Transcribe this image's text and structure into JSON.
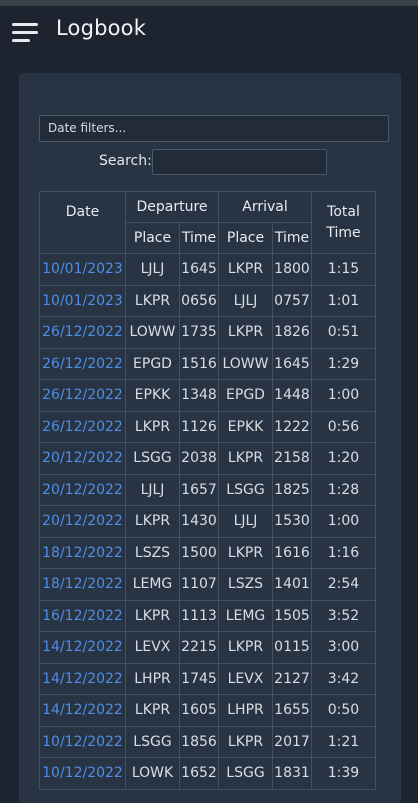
{
  "header": {
    "title": "Logbook",
    "menu_icon": "hamburger-menu-icon"
  },
  "filters": {
    "date_filters_label": "Date filters...",
    "search_label": "Search:",
    "search_value": ""
  },
  "table": {
    "headers": {
      "date": "Date",
      "departure": "Departure",
      "arrival": "Arrival",
      "total_time": "Total Time",
      "place": "Place",
      "time": "Time"
    },
    "rows": [
      {
        "date": "10/01/2023",
        "dep_place": "LJLJ",
        "dep_time": "1645",
        "arr_place": "LKPR",
        "arr_time": "1800",
        "total": "1:15"
      },
      {
        "date": "10/01/2023",
        "dep_place": "LKPR",
        "dep_time": "0656",
        "arr_place": "LJLJ",
        "arr_time": "0757",
        "total": "1:01"
      },
      {
        "date": "26/12/2022",
        "dep_place": "LOWW",
        "dep_time": "1735",
        "arr_place": "LKPR",
        "arr_time": "1826",
        "total": "0:51"
      },
      {
        "date": "26/12/2022",
        "dep_place": "EPGD",
        "dep_time": "1516",
        "arr_place": "LOWW",
        "arr_time": "1645",
        "total": "1:29"
      },
      {
        "date": "26/12/2022",
        "dep_place": "EPKK",
        "dep_time": "1348",
        "arr_place": "EPGD",
        "arr_time": "1448",
        "total": "1:00"
      },
      {
        "date": "26/12/2022",
        "dep_place": "LKPR",
        "dep_time": "1126",
        "arr_place": "EPKK",
        "arr_time": "1222",
        "total": "0:56"
      },
      {
        "date": "20/12/2022",
        "dep_place": "LSGG",
        "dep_time": "2038",
        "arr_place": "LKPR",
        "arr_time": "2158",
        "total": "1:20"
      },
      {
        "date": "20/12/2022",
        "dep_place": "LJLJ",
        "dep_time": "1657",
        "arr_place": "LSGG",
        "arr_time": "1825",
        "total": "1:28"
      },
      {
        "date": "20/12/2022",
        "dep_place": "LKPR",
        "dep_time": "1430",
        "arr_place": "LJLJ",
        "arr_time": "1530",
        "total": "1:00"
      },
      {
        "date": "18/12/2022",
        "dep_place": "LSZS",
        "dep_time": "1500",
        "arr_place": "LKPR",
        "arr_time": "1616",
        "total": "1:16"
      },
      {
        "date": "18/12/2022",
        "dep_place": "LEMG",
        "dep_time": "1107",
        "arr_place": "LSZS",
        "arr_time": "1401",
        "total": "2:54"
      },
      {
        "date": "16/12/2022",
        "dep_place": "LKPR",
        "dep_time": "1113",
        "arr_place": "LEMG",
        "arr_time": "1505",
        "total": "3:52"
      },
      {
        "date": "14/12/2022",
        "dep_place": "LEVX",
        "dep_time": "2215",
        "arr_place": "LKPR",
        "arr_time": "0115",
        "total": "3:00"
      },
      {
        "date": "14/12/2022",
        "dep_place": "LHPR",
        "dep_time": "1745",
        "arr_place": "LEVX",
        "arr_time": "2127",
        "total": "3:42"
      },
      {
        "date": "14/12/2022",
        "dep_place": "LKPR",
        "dep_time": "1605",
        "arr_place": "LHPR",
        "arr_time": "1655",
        "total": "0:50"
      },
      {
        "date": "10/12/2022",
        "dep_place": "LSGG",
        "dep_time": "1856",
        "arr_place": "LKPR",
        "arr_time": "2017",
        "total": "1:21"
      },
      {
        "date": "10/12/2022",
        "dep_place": "LOWK",
        "dep_time": "1652",
        "arr_place": "LSGG",
        "arr_time": "1831",
        "total": "1:39"
      }
    ]
  }
}
